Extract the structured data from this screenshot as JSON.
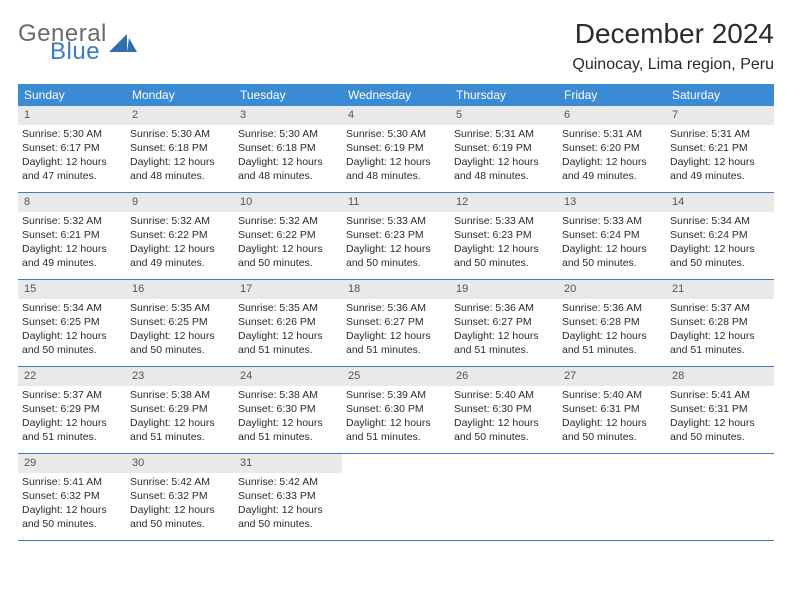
{
  "logo": {
    "word1": "General",
    "word2": "Blue",
    "tri_color": "#2f6fb0"
  },
  "header": {
    "title": "December 2024",
    "location": "Quinocay, Lima region, Peru"
  },
  "colors": {
    "weekday_bg": "#3b8bd4",
    "weekday_fg": "#ffffff",
    "daynum_bg": "#e9e9e9",
    "rule": "#3b7bbf"
  },
  "weekdays": [
    "Sunday",
    "Monday",
    "Tuesday",
    "Wednesday",
    "Thursday",
    "Friday",
    "Saturday"
  ],
  "days": [
    {
      "n": "1",
      "sr": "5:30 AM",
      "ss": "6:17 PM",
      "dl": "12 hours and 47 minutes."
    },
    {
      "n": "2",
      "sr": "5:30 AM",
      "ss": "6:18 PM",
      "dl": "12 hours and 48 minutes."
    },
    {
      "n": "3",
      "sr": "5:30 AM",
      "ss": "6:18 PM",
      "dl": "12 hours and 48 minutes."
    },
    {
      "n": "4",
      "sr": "5:30 AM",
      "ss": "6:19 PM",
      "dl": "12 hours and 48 minutes."
    },
    {
      "n": "5",
      "sr": "5:31 AM",
      "ss": "6:19 PM",
      "dl": "12 hours and 48 minutes."
    },
    {
      "n": "6",
      "sr": "5:31 AM",
      "ss": "6:20 PM",
      "dl": "12 hours and 49 minutes."
    },
    {
      "n": "7",
      "sr": "5:31 AM",
      "ss": "6:21 PM",
      "dl": "12 hours and 49 minutes."
    },
    {
      "n": "8",
      "sr": "5:32 AM",
      "ss": "6:21 PM",
      "dl": "12 hours and 49 minutes."
    },
    {
      "n": "9",
      "sr": "5:32 AM",
      "ss": "6:22 PM",
      "dl": "12 hours and 49 minutes."
    },
    {
      "n": "10",
      "sr": "5:32 AM",
      "ss": "6:22 PM",
      "dl": "12 hours and 50 minutes."
    },
    {
      "n": "11",
      "sr": "5:33 AM",
      "ss": "6:23 PM",
      "dl": "12 hours and 50 minutes."
    },
    {
      "n": "12",
      "sr": "5:33 AM",
      "ss": "6:23 PM",
      "dl": "12 hours and 50 minutes."
    },
    {
      "n": "13",
      "sr": "5:33 AM",
      "ss": "6:24 PM",
      "dl": "12 hours and 50 minutes."
    },
    {
      "n": "14",
      "sr": "5:34 AM",
      "ss": "6:24 PM",
      "dl": "12 hours and 50 minutes."
    },
    {
      "n": "15",
      "sr": "5:34 AM",
      "ss": "6:25 PM",
      "dl": "12 hours and 50 minutes."
    },
    {
      "n": "16",
      "sr": "5:35 AM",
      "ss": "6:25 PM",
      "dl": "12 hours and 50 minutes."
    },
    {
      "n": "17",
      "sr": "5:35 AM",
      "ss": "6:26 PM",
      "dl": "12 hours and 51 minutes."
    },
    {
      "n": "18",
      "sr": "5:36 AM",
      "ss": "6:27 PM",
      "dl": "12 hours and 51 minutes."
    },
    {
      "n": "19",
      "sr": "5:36 AM",
      "ss": "6:27 PM",
      "dl": "12 hours and 51 minutes."
    },
    {
      "n": "20",
      "sr": "5:36 AM",
      "ss": "6:28 PM",
      "dl": "12 hours and 51 minutes."
    },
    {
      "n": "21",
      "sr": "5:37 AM",
      "ss": "6:28 PM",
      "dl": "12 hours and 51 minutes."
    },
    {
      "n": "22",
      "sr": "5:37 AM",
      "ss": "6:29 PM",
      "dl": "12 hours and 51 minutes."
    },
    {
      "n": "23",
      "sr": "5:38 AM",
      "ss": "6:29 PM",
      "dl": "12 hours and 51 minutes."
    },
    {
      "n": "24",
      "sr": "5:38 AM",
      "ss": "6:30 PM",
      "dl": "12 hours and 51 minutes."
    },
    {
      "n": "25",
      "sr": "5:39 AM",
      "ss": "6:30 PM",
      "dl": "12 hours and 51 minutes."
    },
    {
      "n": "26",
      "sr": "5:40 AM",
      "ss": "6:30 PM",
      "dl": "12 hours and 50 minutes."
    },
    {
      "n": "27",
      "sr": "5:40 AM",
      "ss": "6:31 PM",
      "dl": "12 hours and 50 minutes."
    },
    {
      "n": "28",
      "sr": "5:41 AM",
      "ss": "6:31 PM",
      "dl": "12 hours and 50 minutes."
    },
    {
      "n": "29",
      "sr": "5:41 AM",
      "ss": "6:32 PM",
      "dl": "12 hours and 50 minutes."
    },
    {
      "n": "30",
      "sr": "5:42 AM",
      "ss": "6:32 PM",
      "dl": "12 hours and 50 minutes."
    },
    {
      "n": "31",
      "sr": "5:42 AM",
      "ss": "6:33 PM",
      "dl": "12 hours and 50 minutes."
    }
  ],
  "labels": {
    "sunrise": "Sunrise:",
    "sunset": "Sunset:",
    "daylight": "Daylight:"
  }
}
